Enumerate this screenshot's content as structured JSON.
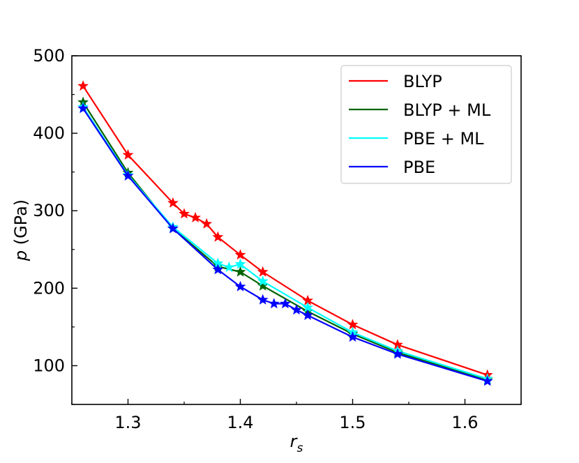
{
  "chart_data": {
    "type": "line",
    "title": "",
    "xlabel": "r",
    "xlabel_subscript": "s",
    "ylabel_italic": "p",
    "ylabel_rest": " (GPa)",
    "xlim": [
      1.25,
      1.65
    ],
    "ylim": [
      50,
      500
    ],
    "xticks": [
      1.3,
      1.4,
      1.5,
      1.6
    ],
    "xtick_labels": [
      "1.3",
      "1.4",
      "1.5",
      "1.6"
    ],
    "yticks": [
      100,
      200,
      300,
      400,
      500
    ],
    "ytick_labels": [
      "100",
      "200",
      "300",
      "400",
      "500"
    ],
    "grid": false,
    "legend_position": "top-right",
    "marker": "star",
    "series": [
      {
        "name": "BLYP",
        "color": "#ff0000",
        "x": [
          1.26,
          1.3,
          1.34,
          1.35,
          1.36,
          1.37,
          1.38,
          1.4,
          1.42,
          1.46,
          1.5,
          1.54,
          1.62
        ],
        "y": [
          461,
          372,
          310,
          296,
          291,
          283,
          266,
          243,
          221,
          184,
          153,
          127,
          88
        ]
      },
      {
        "name": "BLYP + ML",
        "color": "#006400",
        "x": [
          1.26,
          1.3,
          1.34,
          1.38,
          1.4,
          1.42,
          1.46,
          1.5,
          1.54,
          1.62
        ],
        "y": [
          440,
          349,
          277,
          228,
          221,
          203,
          170,
          141,
          117,
          82
        ]
      },
      {
        "name": "PBE + ML",
        "color": "#00ffff",
        "x": [
          1.26,
          1.3,
          1.34,
          1.38,
          1.39,
          1.4,
          1.42,
          1.46,
          1.5,
          1.54,
          1.62
        ],
        "y": [
          434,
          346,
          279,
          232,
          227,
          231,
          209,
          175,
          143,
          119,
          83
        ]
      },
      {
        "name": "PBE",
        "color": "#0000ff",
        "x": [
          1.26,
          1.3,
          1.34,
          1.38,
          1.4,
          1.42,
          1.43,
          1.44,
          1.45,
          1.46,
          1.5,
          1.54,
          1.62
        ],
        "y": [
          432,
          345,
          277,
          224,
          202,
          185,
          180,
          180,
          172,
          165,
          137,
          115,
          80
        ]
      }
    ]
  }
}
